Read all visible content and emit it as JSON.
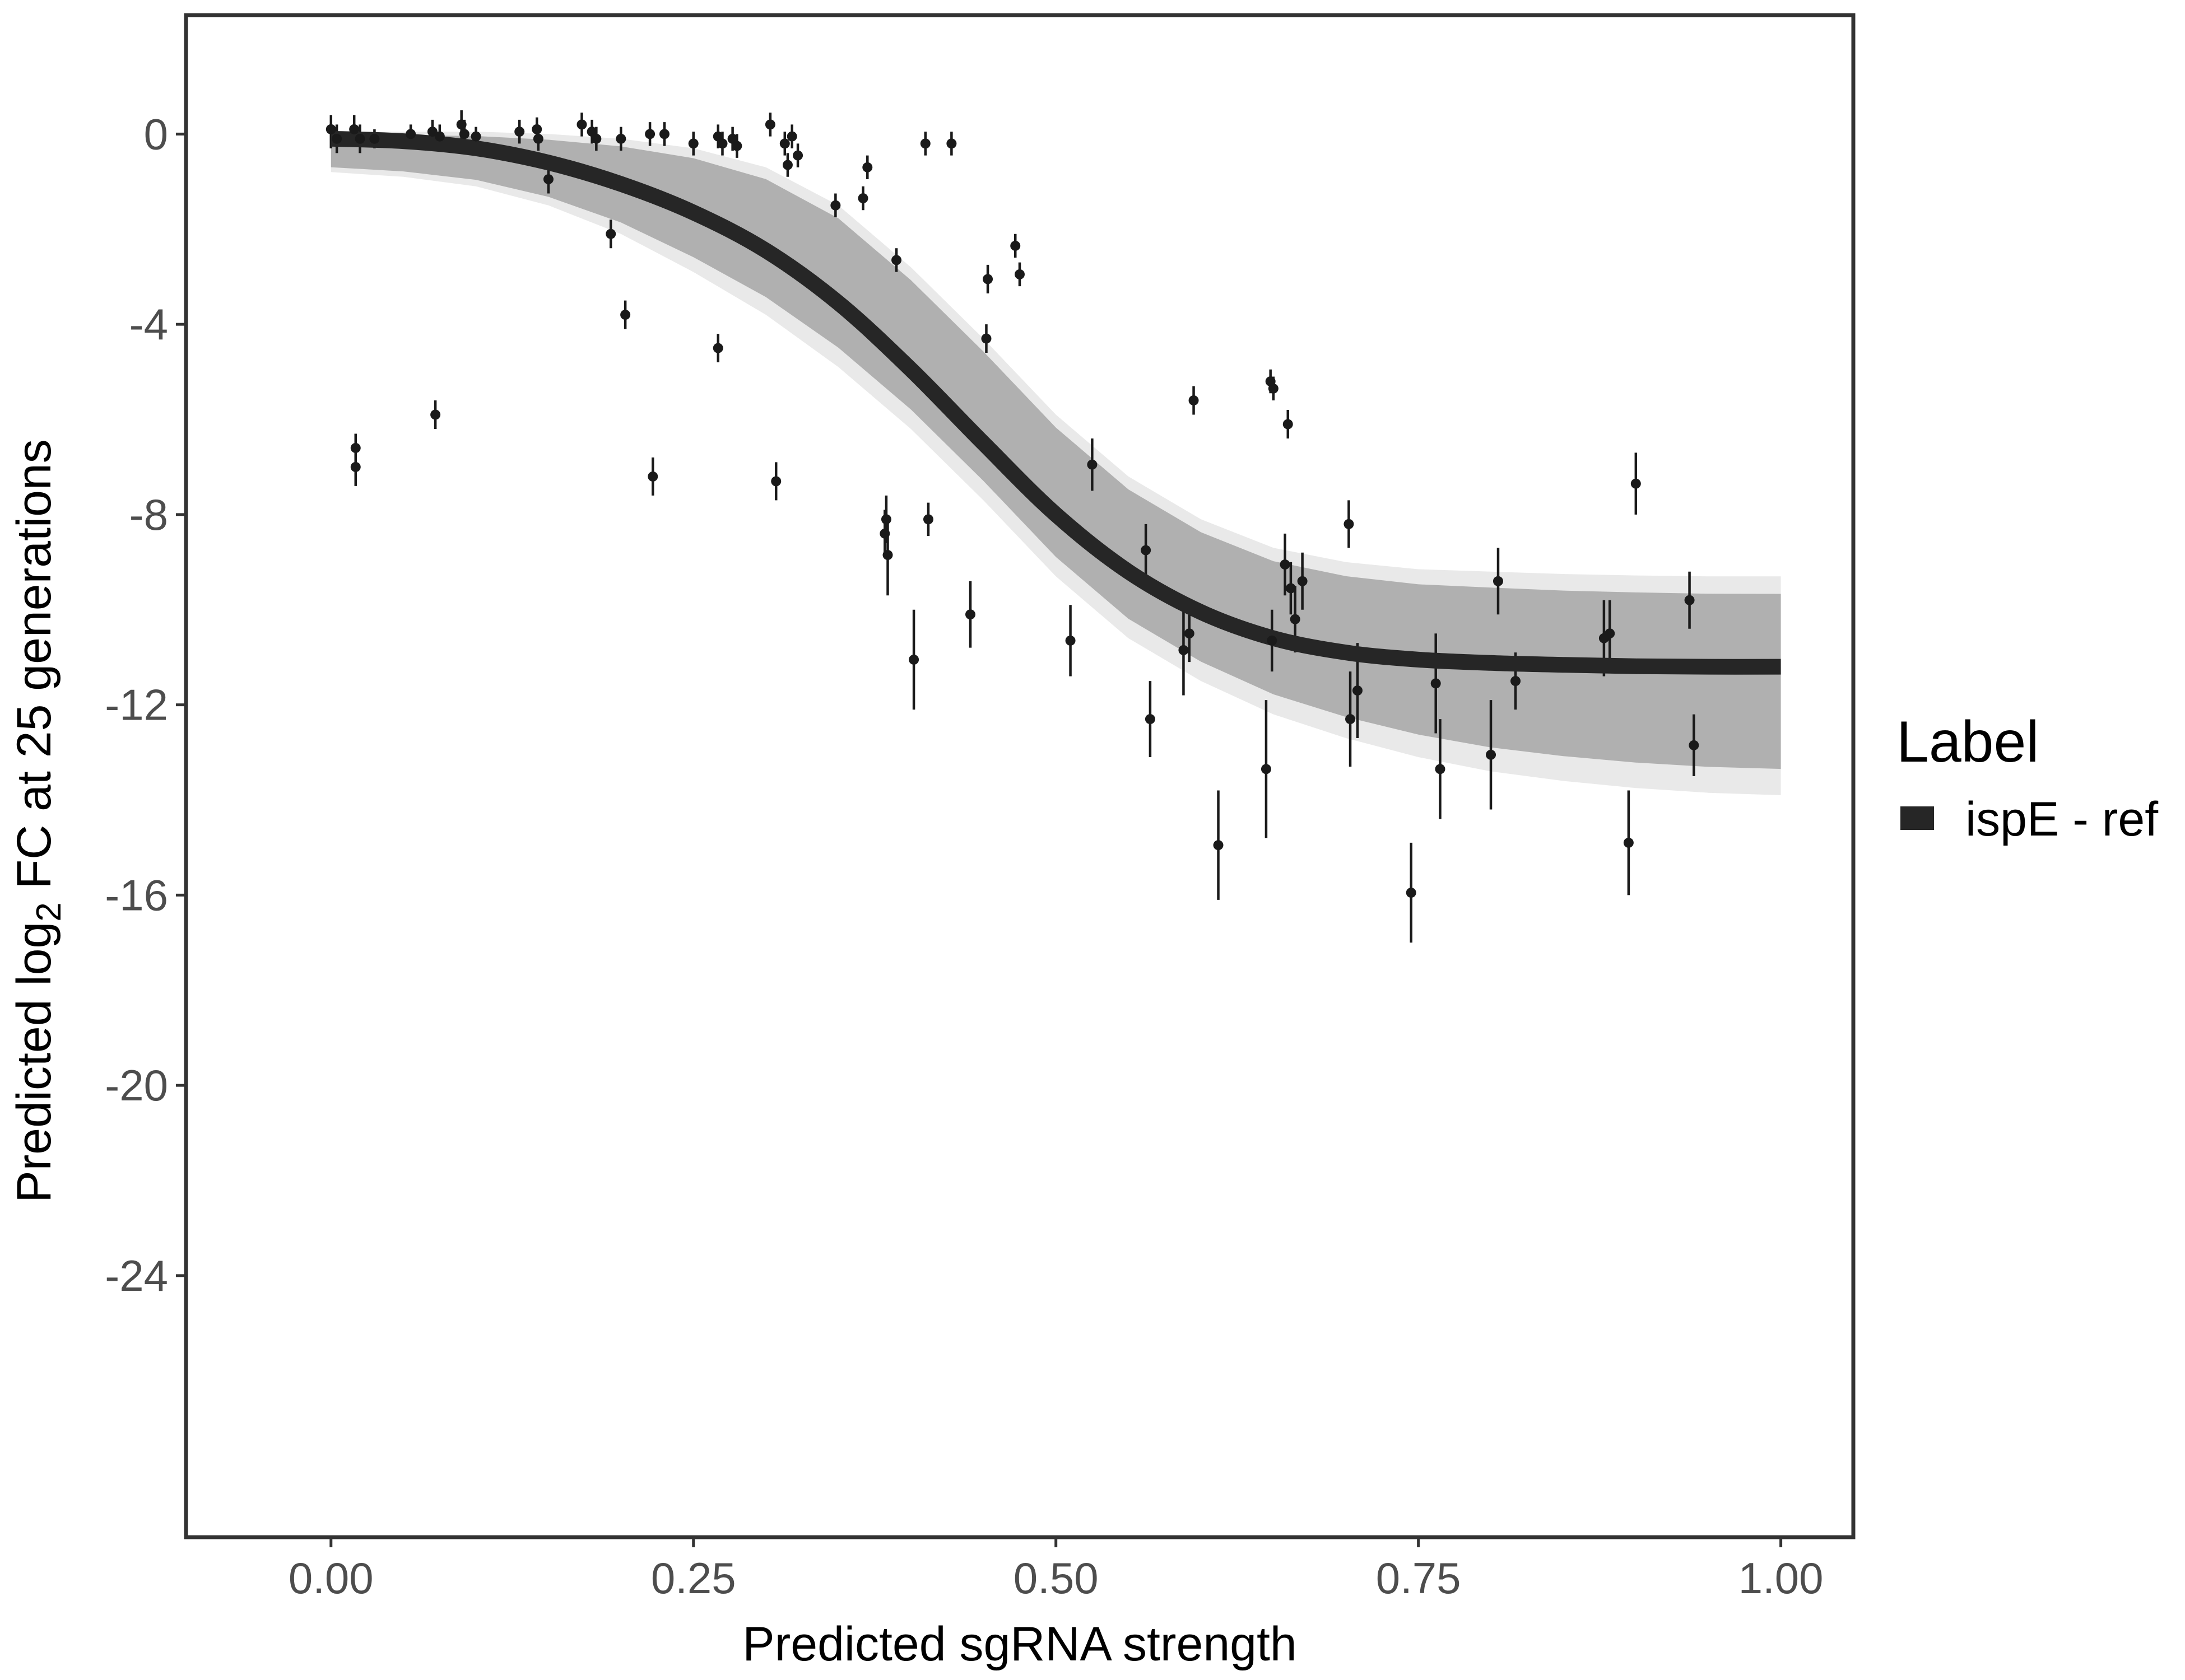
{
  "chart_data": {
    "type": "scatter",
    "title": "",
    "xlabel": "Predicted sgRNA strength",
    "ylabel_parts": [
      "Predicted  log",
      "2",
      " FC at 25 generations"
    ],
    "xlim": [
      -0.1,
      1.05
    ],
    "ylim": [
      -29.5,
      2.5
    ],
    "x_ticks": [
      0,
      0.25,
      0.5,
      0.75,
      1
    ],
    "x_tick_labels": [
      "0.00",
      "0.25",
      "0.50",
      "0.75",
      "1.00"
    ],
    "y_ticks": [
      0,
      -4,
      -8,
      -12,
      -16,
      -20,
      -24
    ],
    "y_tick_labels": [
      "0",
      "-4",
      "-8",
      "-12",
      "-16",
      "-20",
      "-24"
    ],
    "grid": false,
    "legend": {
      "title": "Label",
      "position": "right",
      "entries": [
        {
          "label": "ispE - ref",
          "color": "#262626"
        }
      ]
    },
    "colors": {
      "fit": "#262626",
      "band": "#a6a6a6",
      "points": "#1a1a1a",
      "frame": "#333333"
    },
    "fit_curve": {
      "name": "ispE - ref",
      "x": [
        0,
        0.05,
        0.1,
        0.15,
        0.2,
        0.25,
        0.3,
        0.35,
        0.4,
        0.45,
        0.5,
        0.55,
        0.6,
        0.65,
        0.7,
        0.75,
        0.8,
        0.85,
        0.9,
        0.95,
        1.0
      ],
      "y": [
        -0.1,
        -0.15,
        -0.3,
        -0.6,
        -1.05,
        -1.65,
        -2.45,
        -3.55,
        -4.95,
        -6.5,
        -8.0,
        -9.2,
        -10.05,
        -10.6,
        -10.9,
        -11.05,
        -11.12,
        -11.16,
        -11.19,
        -11.2,
        -11.2
      ]
    },
    "uncertainty_band": {
      "x": [
        0,
        0.05,
        0.1,
        0.15,
        0.2,
        0.25,
        0.3,
        0.35,
        0.4,
        0.45,
        0.5,
        0.55,
        0.6,
        0.65,
        0.7,
        0.75,
        0.8,
        0.85,
        0.9,
        0.95,
        1.0
      ],
      "upper": [
        0.05,
        0.05,
        0.05,
        0.0,
        -0.1,
        -0.3,
        -0.7,
        -1.5,
        -2.8,
        -4.3,
        -5.9,
        -7.2,
        -8.1,
        -8.7,
        -9.0,
        -9.15,
        -9.2,
        -9.25,
        -9.28,
        -9.3,
        -9.3
      ],
      "lower": [
        -0.8,
        -0.9,
        -1.1,
        -1.5,
        -2.1,
        -2.9,
        -3.8,
        -4.9,
        -6.2,
        -7.7,
        -9.3,
        -10.6,
        -11.5,
        -12.2,
        -12.7,
        -13.1,
        -13.4,
        -13.6,
        -13.75,
        -13.85,
        -13.9
      ]
    },
    "points": [
      {
        "x": 0.0,
        "y": 0.1,
        "lo": -0.3,
        "hi": 0.4
      },
      {
        "x": 0.004,
        "y": -0.1,
        "lo": -0.4,
        "hi": 0.2
      },
      {
        "x": 0.016,
        "y": 0.1,
        "lo": -0.2,
        "hi": 0.4
      },
      {
        "x": 0.02,
        "y": -0.1,
        "lo": -0.4,
        "hi": 0.2
      },
      {
        "x": 0.017,
        "y": -6.6,
        "lo": -7.0,
        "hi": -6.3
      },
      {
        "x": 0.017,
        "y": -7.0,
        "lo": -7.4,
        "hi": -6.7
      },
      {
        "x": 0.03,
        "y": -0.1,
        "lo": -0.3,
        "hi": 0.1
      },
      {
        "x": 0.055,
        "y": 0.0,
        "lo": -0.2,
        "hi": 0.2
      },
      {
        "x": 0.07,
        "y": 0.05,
        "lo": -0.2,
        "hi": 0.3
      },
      {
        "x": 0.075,
        "y": -0.05,
        "lo": -0.3,
        "hi": 0.2
      },
      {
        "x": 0.072,
        "y": -5.9,
        "lo": -6.2,
        "hi": -5.6
      },
      {
        "x": 0.09,
        "y": 0.2,
        "lo": -0.1,
        "hi": 0.5
      },
      {
        "x": 0.092,
        "y": 0.0,
        "lo": -0.3,
        "hi": 0.3
      },
      {
        "x": 0.1,
        "y": -0.05,
        "lo": -0.25,
        "hi": 0.15
      },
      {
        "x": 0.13,
        "y": 0.05,
        "lo": -0.2,
        "hi": 0.3
      },
      {
        "x": 0.142,
        "y": 0.1,
        "lo": -0.15,
        "hi": 0.35
      },
      {
        "x": 0.143,
        "y": -0.1,
        "lo": -0.35,
        "hi": 0.15
      },
      {
        "x": 0.15,
        "y": -0.95,
        "lo": -1.25,
        "hi": -0.65
      },
      {
        "x": 0.173,
        "y": 0.2,
        "lo": -0.05,
        "hi": 0.45
      },
      {
        "x": 0.18,
        "y": 0.05,
        "lo": -0.2,
        "hi": 0.3
      },
      {
        "x": 0.183,
        "y": -0.1,
        "lo": -0.35,
        "hi": 0.15
      },
      {
        "x": 0.193,
        "y": -2.1,
        "lo": -2.4,
        "hi": -1.8
      },
      {
        "x": 0.2,
        "y": -0.1,
        "lo": -0.35,
        "hi": 0.15
      },
      {
        "x": 0.203,
        "y": -3.8,
        "lo": -4.1,
        "hi": -3.5
      },
      {
        "x": 0.22,
        "y": 0.0,
        "lo": -0.25,
        "hi": 0.25
      },
      {
        "x": 0.222,
        "y": -7.2,
        "lo": -7.6,
        "hi": -6.8
      },
      {
        "x": 0.23,
        "y": 0.0,
        "lo": -0.25,
        "hi": 0.25
      },
      {
        "x": 0.25,
        "y": -0.2,
        "lo": -0.45,
        "hi": 0.05
      },
      {
        "x": 0.267,
        "y": -0.05,
        "lo": -0.3,
        "hi": 0.2
      },
      {
        "x": 0.27,
        "y": -0.2,
        "lo": -0.45,
        "hi": 0.05
      },
      {
        "x": 0.267,
        "y": -4.5,
        "lo": -4.8,
        "hi": -4.2
      },
      {
        "x": 0.277,
        "y": -0.1,
        "lo": -0.35,
        "hi": 0.15
      },
      {
        "x": 0.28,
        "y": -0.25,
        "lo": -0.5,
        "hi": 0.0
      },
      {
        "x": 0.303,
        "y": 0.2,
        "lo": -0.05,
        "hi": 0.45
      },
      {
        "x": 0.307,
        "y": -7.3,
        "lo": -7.7,
        "hi": -6.9
      },
      {
        "x": 0.313,
        "y": -0.2,
        "lo": -0.45,
        "hi": 0.05
      },
      {
        "x": 0.315,
        "y": -0.65,
        "lo": -0.9,
        "hi": -0.4
      },
      {
        "x": 0.318,
        "y": -0.05,
        "lo": -0.3,
        "hi": 0.2
      },
      {
        "x": 0.322,
        "y": -0.45,
        "lo": -0.7,
        "hi": -0.2
      },
      {
        "x": 0.348,
        "y": -1.5,
        "lo": -1.75,
        "hi": -1.25
      },
      {
        "x": 0.367,
        "y": -1.35,
        "lo": -1.6,
        "hi": -1.1
      },
      {
        "x": 0.37,
        "y": -0.7,
        "lo": -0.95,
        "hi": -0.45
      },
      {
        "x": 0.383,
        "y": -8.1,
        "lo": -8.6,
        "hi": -7.6
      },
      {
        "x": 0.382,
        "y": -8.4,
        "lo": -8.9,
        "hi": -7.9
      },
      {
        "x": 0.384,
        "y": -8.85,
        "lo": -9.7,
        "hi": -8.1
      },
      {
        "x": 0.39,
        "y": -2.65,
        "lo": -2.9,
        "hi": -2.4
      },
      {
        "x": 0.402,
        "y": -11.05,
        "lo": -12.1,
        "hi": -10.0
      },
      {
        "x": 0.41,
        "y": -0.2,
        "lo": -0.45,
        "hi": 0.05
      },
      {
        "x": 0.412,
        "y": -8.1,
        "lo": -8.45,
        "hi": -7.75
      },
      {
        "x": 0.428,
        "y": -0.2,
        "lo": -0.45,
        "hi": 0.05
      },
      {
        "x": 0.441,
        "y": -10.1,
        "lo": -10.8,
        "hi": -9.4
      },
      {
        "x": 0.452,
        "y": -4.3,
        "lo": -4.6,
        "hi": -4.0
      },
      {
        "x": 0.453,
        "y": -3.05,
        "lo": -3.35,
        "hi": -2.75
      },
      {
        "x": 0.472,
        "y": -2.35,
        "lo": -2.6,
        "hi": -2.1
      },
      {
        "x": 0.475,
        "y": -2.95,
        "lo": -3.2,
        "hi": -2.7
      },
      {
        "x": 0.51,
        "y": -10.65,
        "lo": -11.4,
        "hi": -9.9
      },
      {
        "x": 0.525,
        "y": -6.95,
        "lo": -7.5,
        "hi": -6.4
      },
      {
        "x": 0.562,
        "y": -8.75,
        "lo": -9.3,
        "hi": -8.2
      },
      {
        "x": 0.565,
        "y": -12.3,
        "lo": -13.1,
        "hi": -11.5
      },
      {
        "x": 0.588,
        "y": -10.85,
        "lo": -11.8,
        "hi": -9.9
      },
      {
        "x": 0.592,
        "y": -10.5,
        "lo": -11.1,
        "hi": -9.9
      },
      {
        "x": 0.595,
        "y": -5.6,
        "lo": -5.9,
        "hi": -5.3
      },
      {
        "x": 0.612,
        "y": -14.95,
        "lo": -16.1,
        "hi": -13.8
      },
      {
        "x": 0.645,
        "y": -13.35,
        "lo": -14.8,
        "hi": -11.9
      },
      {
        "x": 0.648,
        "y": -5.2,
        "lo": -5.45,
        "hi": -4.95
      },
      {
        "x": 0.65,
        "y": -5.35,
        "lo": -5.6,
        "hi": -5.1
      },
      {
        "x": 0.649,
        "y": -10.65,
        "lo": -11.3,
        "hi": -10.0
      },
      {
        "x": 0.658,
        "y": -9.05,
        "lo": -9.7,
        "hi": -8.4
      },
      {
        "x": 0.66,
        "y": -6.1,
        "lo": -6.4,
        "hi": -5.8
      },
      {
        "x": 0.662,
        "y": -9.55,
        "lo": -10.1,
        "hi": -9.0
      },
      {
        "x": 0.665,
        "y": -10.2,
        "lo": -10.9,
        "hi": -9.5
      },
      {
        "x": 0.67,
        "y": -9.4,
        "lo": -10.0,
        "hi": -8.8
      },
      {
        "x": 0.702,
        "y": -8.2,
        "lo": -8.7,
        "hi": -7.7
      },
      {
        "x": 0.703,
        "y": -12.3,
        "lo": -13.3,
        "hi": -11.3
      },
      {
        "x": 0.708,
        "y": -11.7,
        "lo": -12.7,
        "hi": -10.7
      },
      {
        "x": 0.745,
        "y": -15.95,
        "lo": -17.0,
        "hi": -14.9
      },
      {
        "x": 0.762,
        "y": -11.55,
        "lo": -12.6,
        "hi": -10.5
      },
      {
        "x": 0.765,
        "y": -13.35,
        "lo": -14.4,
        "hi": -12.3
      },
      {
        "x": 0.8,
        "y": -13.05,
        "lo": -14.2,
        "hi": -11.9
      },
      {
        "x": 0.805,
        "y": -9.4,
        "lo": -10.1,
        "hi": -8.7
      },
      {
        "x": 0.817,
        "y": -11.5,
        "lo": -12.1,
        "hi": -10.9
      },
      {
        "x": 0.878,
        "y": -10.6,
        "lo": -11.4,
        "hi": -9.8
      },
      {
        "x": 0.882,
        "y": -10.5,
        "lo": -11.2,
        "hi": -9.8
      },
      {
        "x": 0.895,
        "y": -14.9,
        "lo": -16.0,
        "hi": -13.8
      },
      {
        "x": 0.9,
        "y": -7.35,
        "lo": -8.0,
        "hi": -6.7
      },
      {
        "x": 0.937,
        "y": -9.8,
        "lo": -10.4,
        "hi": -9.2
      },
      {
        "x": 0.94,
        "y": -12.85,
        "lo": -13.5,
        "hi": -12.2
      }
    ]
  }
}
